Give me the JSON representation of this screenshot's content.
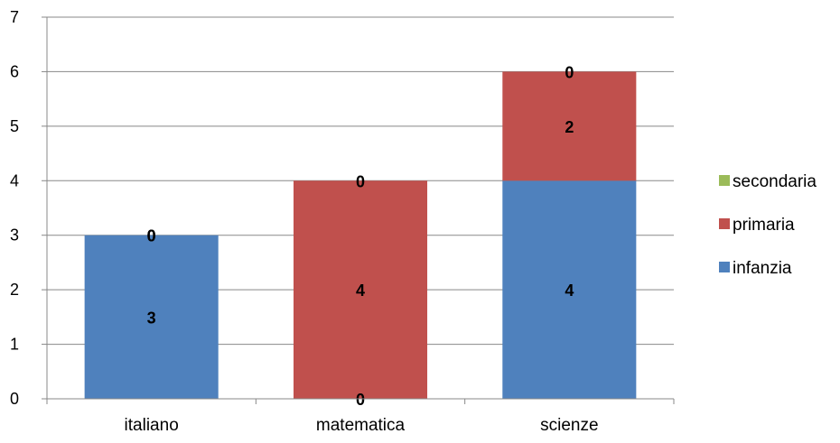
{
  "chart_data": {
    "type": "bar",
    "stacked": true,
    "categories": [
      "italiano",
      "matematica",
      "scienze"
    ],
    "series": [
      {
        "name": "infanzia",
        "values": [
          3,
          0,
          4
        ],
        "color": "#4F81BD"
      },
      {
        "name": "primaria",
        "values": [
          0,
          4,
          2
        ],
        "color": "#C0504D"
      },
      {
        "name": "secondaria",
        "values": [
          0,
          0,
          0
        ],
        "color": "#9BBB59"
      }
    ],
    "title": "",
    "xlabel": "",
    "ylabel": "",
    "ylim": [
      0,
      7
    ],
    "yticks": [
      "0",
      "1",
      "2",
      "3",
      "4",
      "5",
      "6",
      "7"
    ],
    "grid": true,
    "legend_position": "right",
    "data_labels": true
  }
}
